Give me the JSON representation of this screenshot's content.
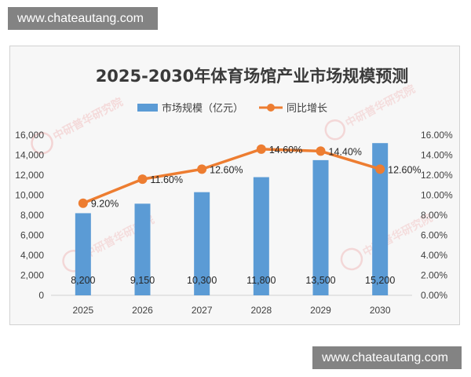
{
  "watermark": {
    "top": "www.chateautang.com",
    "bottom": "www.chateautang.com",
    "stamp_text": "中研普华研究院"
  },
  "colors": {
    "bar": "#5b9bd5",
    "line": "#ed7d31",
    "card_bg": "#f7f7f7"
  },
  "chart_data": {
    "type": "bar",
    "title": "2025-2030年体育场馆产业市场规模预测",
    "categories": [
      "2025",
      "2026",
      "2027",
      "2028",
      "2029",
      "2030"
    ],
    "series": [
      {
        "name": "市场规模（亿元）",
        "type": "bar",
        "axis": "left",
        "values": [
          8200,
          9150,
          10300,
          11800,
          13500,
          15200
        ],
        "labels": [
          "8,200",
          "9,150",
          "10,300",
          "11,800",
          "13,500",
          "15,200"
        ]
      },
      {
        "name": "同比增长",
        "type": "line",
        "axis": "right",
        "values": [
          9.2,
          11.6,
          12.6,
          14.6,
          14.4,
          12.6
        ],
        "labels": [
          "9.20%",
          "11.60%",
          "12.60%",
          "14.60%",
          "14.40%",
          "12.60%"
        ]
      }
    ],
    "y_left": {
      "ylim": [
        0,
        16000
      ],
      "ticks": [
        "0",
        "2,000",
        "4,000",
        "6,000",
        "8,000",
        "10,000",
        "12,000",
        "14,000",
        "16,000"
      ]
    },
    "y_right": {
      "ylim": [
        0,
        16
      ],
      "ticks": [
        "0.00%",
        "2.00%",
        "4.00%",
        "6.00%",
        "8.00%",
        "10.00%",
        "12.00%",
        "14.00%",
        "16.00%"
      ]
    },
    "grid": false,
    "legend_position": "top"
  }
}
